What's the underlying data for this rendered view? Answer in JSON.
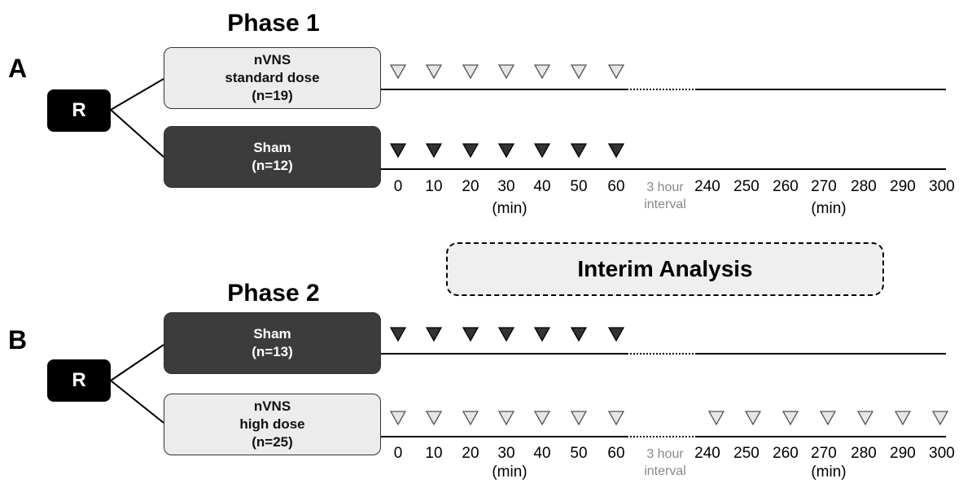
{
  "phase1": {
    "title": "Phase 1",
    "letter": "A",
    "randomize_label": "R",
    "arms": [
      {
        "lines": [
          "nVNS",
          "standard dose",
          "(n=19)"
        ],
        "style": "light",
        "marker": "open"
      },
      {
        "lines": [
          "Sham",
          "(n=12)"
        ],
        "style": "dark",
        "marker": "filled"
      }
    ],
    "early_ticks": [
      "0",
      "10",
      "20",
      "30",
      "40",
      "50",
      "60"
    ],
    "early_unit": "(min)",
    "interval_lines": [
      "3 hour",
      "interval"
    ],
    "late_ticks": [
      "240",
      "250",
      "260",
      "270",
      "280",
      "290",
      "300"
    ],
    "late_unit": "(min)"
  },
  "interim": {
    "label": "Interim Analysis"
  },
  "phase2": {
    "title": "Phase 2",
    "letter": "B",
    "randomize_label": "R",
    "arms": [
      {
        "lines": [
          "Sham",
          "(n=13)"
        ],
        "style": "dark",
        "marker": "filled"
      },
      {
        "lines": [
          "nVNS",
          "high dose",
          "(n=25)"
        ],
        "style": "light",
        "marker": "open",
        "late_markers": true
      }
    ],
    "early_ticks": [
      "0",
      "10",
      "20",
      "30",
      "40",
      "50",
      "60"
    ],
    "early_unit": "(min)",
    "interval_lines": [
      "3 hour",
      "interval"
    ],
    "late_ticks": [
      "240",
      "250",
      "260",
      "270",
      "280",
      "290",
      "300"
    ],
    "late_unit": "(min)"
  },
  "colors": {
    "light_box": "#ececec",
    "dark_box": "#3c3c3c",
    "open_marker_fill": "#e6e6e6",
    "filled_marker": "#333333",
    "interval_text": "#888888"
  }
}
